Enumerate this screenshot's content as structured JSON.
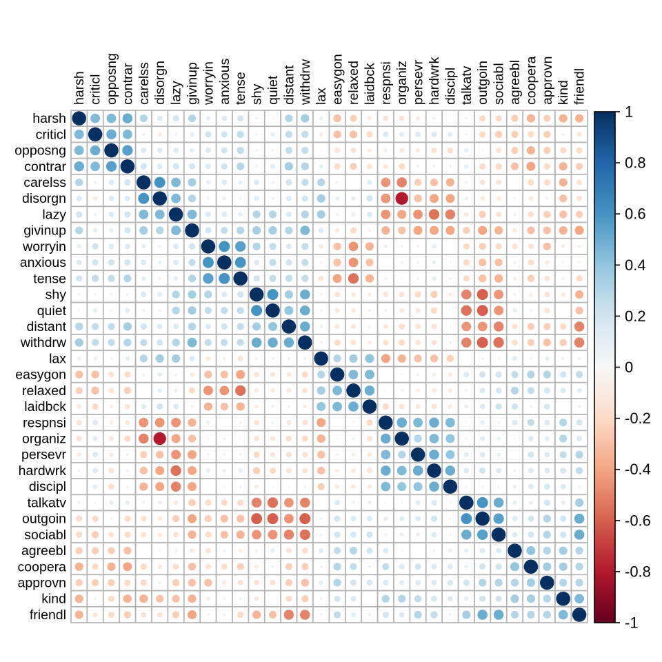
{
  "chart_data": {
    "type": "heatmap",
    "subtype": "correlation-circle-matrix",
    "title": "",
    "grid": true,
    "legend_position": "right",
    "variables": [
      "harsh",
      "criticl",
      "opposng",
      "contrar",
      "carelss",
      "disorgn",
      "lazy",
      "givinup",
      "worryin",
      "anxious",
      "tense",
      "shy",
      "quiet",
      "distant",
      "withdrw",
      "lax",
      "easygon",
      "relaxed",
      "laidbck",
      "respnsi",
      "organiz",
      "persevr",
      "hardwrk",
      "discipl",
      "talkatv",
      "outgoin",
      "sociabl",
      "agreebl",
      "coopera",
      "approvn",
      "kind",
      "friendl"
    ],
    "value_range": [
      -1,
      1
    ],
    "matrix": [
      [
        1.0,
        0.45,
        0.45,
        0.5,
        0.3,
        0.15,
        0.2,
        0.3,
        0.1,
        0.15,
        0.2,
        0.05,
        0.02,
        0.3,
        0.35,
        0.08,
        -0.3,
        -0.25,
        -0.1,
        -0.15,
        -0.15,
        -0.1,
        0.05,
        0.0,
        0.05,
        -0.2,
        -0.2,
        -0.25,
        -0.35,
        -0.25,
        -0.35,
        -0.35
      ],
      [
        0.45,
        1.0,
        0.5,
        0.45,
        0.05,
        -0.1,
        0.05,
        0.1,
        0.2,
        0.2,
        0.25,
        0.03,
        0.1,
        0.25,
        0.25,
        -0.08,
        -0.3,
        -0.3,
        -0.2,
        0.15,
        0.12,
        0.15,
        0.15,
        0.12,
        -0.03,
        -0.2,
        -0.25,
        -0.25,
        -0.2,
        -0.25,
        -0.05,
        -0.12
      ],
      [
        0.45,
        0.5,
        1.0,
        0.55,
        0.15,
        0.15,
        0.15,
        0.1,
        0.15,
        0.2,
        0.25,
        -0.05,
        0.05,
        0.25,
        0.25,
        0.02,
        -0.15,
        -0.15,
        -0.08,
        -0.08,
        -0.12,
        -0.1,
        -0.15,
        -0.18,
        0.1,
        0.02,
        -0.15,
        -0.25,
        -0.35,
        -0.25,
        -0.2,
        -0.2
      ],
      [
        0.5,
        0.45,
        0.55,
        1.0,
        0.2,
        0.15,
        0.2,
        0.2,
        0.15,
        0.2,
        0.3,
        0.05,
        0.12,
        0.35,
        0.3,
        0.1,
        -0.2,
        -0.25,
        -0.15,
        -0.12,
        -0.2,
        -0.05,
        -0.05,
        -0.05,
        0.1,
        -0.2,
        -0.2,
        -0.3,
        -0.4,
        -0.2,
        -0.35,
        -0.25
      ],
      [
        0.3,
        0.05,
        0.15,
        0.2,
        1.0,
        0.6,
        0.45,
        0.35,
        0.1,
        0.15,
        0.1,
        0.15,
        0.05,
        0.2,
        0.25,
        0.3,
        -0.05,
        0.0,
        0.12,
        -0.45,
        -0.5,
        -0.25,
        -0.3,
        -0.35,
        0.05,
        -0.15,
        -0.15,
        0.0,
        -0.2,
        -0.2,
        -0.35,
        -0.15
      ],
      [
        0.15,
        -0.1,
        0.15,
        0.15,
        0.6,
        1.0,
        0.45,
        0.3,
        0.05,
        0.08,
        0.05,
        0.12,
        0.05,
        0.15,
        0.2,
        0.35,
        0.1,
        0.1,
        0.2,
        -0.45,
        -0.8,
        -0.3,
        -0.4,
        -0.4,
        0.08,
        -0.1,
        -0.1,
        -0.02,
        -0.1,
        -0.05,
        -0.3,
        -0.15
      ],
      [
        0.2,
        0.05,
        0.15,
        0.2,
        0.45,
        0.45,
        1.0,
        0.45,
        0.15,
        0.15,
        0.1,
        0.3,
        0.3,
        0.15,
        0.3,
        0.35,
        0.05,
        0.08,
        0.15,
        -0.45,
        -0.4,
        -0.45,
        -0.55,
        -0.5,
        -0.1,
        -0.25,
        -0.15,
        -0.05,
        -0.18,
        -0.25,
        -0.3,
        -0.25
      ],
      [
        0.3,
        0.1,
        0.1,
        0.2,
        0.35,
        0.3,
        0.45,
        1.0,
        0.2,
        0.25,
        0.3,
        0.35,
        0.35,
        0.3,
        0.45,
        0.15,
        -0.1,
        -0.2,
        -0.05,
        -0.35,
        -0.3,
        -0.4,
        -0.4,
        -0.4,
        -0.25,
        -0.4,
        -0.35,
        -0.1,
        -0.3,
        -0.3,
        -0.35,
        -0.4
      ],
      [
        0.1,
        0.2,
        0.15,
        0.15,
        0.1,
        0.05,
        0.15,
        0.2,
        1.0,
        0.6,
        0.55,
        0.3,
        0.25,
        0.15,
        0.25,
        -0.1,
        -0.3,
        -0.45,
        -0.35,
        0.08,
        0.03,
        0.05,
        0.1,
        0.0,
        -0.2,
        -0.25,
        -0.2,
        -0.15,
        -0.15,
        -0.3,
        -0.08,
        -0.05
      ],
      [
        0.15,
        0.2,
        0.2,
        0.2,
        0.15,
        0.08,
        0.15,
        0.25,
        0.6,
        1.0,
        0.6,
        0.15,
        0.25,
        0.2,
        0.25,
        -0.05,
        -0.3,
        -0.45,
        -0.3,
        0.0,
        -0.05,
        0.05,
        0.08,
        0.02,
        -0.2,
        -0.3,
        -0.3,
        0.05,
        -0.18,
        -0.1,
        -0.03,
        -0.03
      ],
      [
        0.2,
        0.25,
        0.25,
        0.3,
        0.1,
        0.05,
        0.1,
        0.3,
        0.55,
        0.6,
        1.0,
        0.2,
        0.25,
        0.25,
        0.25,
        -0.15,
        -0.4,
        -0.55,
        -0.35,
        0.05,
        0.02,
        0.05,
        0.1,
        0.05,
        -0.2,
        -0.3,
        -0.35,
        -0.08,
        -0.25,
        -0.15,
        -0.05,
        -0.2
      ],
      [
        0.05,
        0.03,
        -0.05,
        0.05,
        0.15,
        0.12,
        0.3,
        0.35,
        0.3,
        0.15,
        0.2,
        1.0,
        0.6,
        0.35,
        0.5,
        0.05,
        -0.15,
        -0.1,
        -0.08,
        -0.15,
        -0.15,
        -0.2,
        -0.25,
        -0.08,
        -0.5,
        -0.6,
        -0.45,
        0.05,
        -0.08,
        -0.15,
        -0.1,
        -0.35
      ],
      [
        0.02,
        0.1,
        0.05,
        0.12,
        0.05,
        0.05,
        0.3,
        0.35,
        0.25,
        0.25,
        0.25,
        0.6,
        1.0,
        0.4,
        0.5,
        0.05,
        -0.12,
        -0.1,
        -0.05,
        -0.05,
        -0.12,
        -0.12,
        -0.2,
        -0.02,
        -0.55,
        -0.6,
        -0.45,
        0.1,
        0.05,
        -0.15,
        0.0,
        -0.3
      ],
      [
        0.3,
        0.25,
        0.25,
        0.35,
        0.2,
        0.15,
        0.15,
        0.3,
        0.15,
        0.2,
        0.25,
        0.35,
        0.4,
        1.0,
        0.5,
        0.05,
        -0.12,
        -0.12,
        -0.05,
        -0.12,
        -0.18,
        -0.15,
        -0.15,
        -0.02,
        -0.45,
        -0.45,
        -0.5,
        -0.15,
        -0.25,
        -0.25,
        -0.2,
        -0.5
      ],
      [
        0.35,
        0.25,
        0.25,
        0.3,
        0.25,
        0.2,
        0.3,
        0.45,
        0.25,
        0.25,
        0.25,
        0.5,
        0.5,
        0.5,
        1.0,
        0.05,
        -0.2,
        -0.15,
        -0.08,
        -0.15,
        -0.2,
        -0.15,
        -0.15,
        -0.05,
        -0.5,
        -0.6,
        -0.55,
        -0.18,
        -0.25,
        -0.3,
        -0.25,
        -0.5
      ],
      [
        0.08,
        -0.08,
        0.02,
        0.1,
        0.3,
        0.35,
        0.35,
        0.15,
        -0.1,
        -0.05,
        -0.15,
        0.05,
        0.05,
        0.05,
        0.05,
        1.0,
        0.3,
        0.35,
        0.4,
        -0.4,
        -0.35,
        -0.3,
        -0.3,
        -0.25,
        0.0,
        0.03,
        0.03,
        0.12,
        0.05,
        0.1,
        0.05,
        0.05
      ],
      [
        -0.3,
        -0.3,
        -0.15,
        -0.2,
        -0.05,
        0.1,
        0.05,
        -0.1,
        -0.3,
        -0.3,
        -0.4,
        -0.15,
        -0.12,
        -0.12,
        -0.2,
        0.3,
        1.0,
        0.45,
        0.45,
        0.0,
        0.02,
        -0.05,
        -0.08,
        -0.1,
        0.15,
        0.2,
        0.2,
        0.25,
        0.3,
        0.3,
        0.2,
        0.25
      ],
      [
        -0.25,
        -0.3,
        -0.15,
        -0.25,
        0.0,
        0.1,
        0.08,
        -0.2,
        -0.45,
        -0.45,
        -0.55,
        -0.1,
        -0.1,
        -0.12,
        -0.15,
        0.35,
        0.45,
        1.0,
        0.5,
        0.02,
        -0.05,
        -0.08,
        -0.1,
        -0.1,
        0.05,
        0.15,
        0.18,
        0.3,
        0.25,
        0.2,
        0.15,
        0.12
      ],
      [
        -0.1,
        -0.2,
        -0.08,
        -0.15,
        0.12,
        0.2,
        0.15,
        -0.05,
        -0.35,
        -0.3,
        -0.35,
        -0.08,
        -0.05,
        -0.05,
        -0.08,
        0.4,
        0.45,
        0.5,
        1.0,
        -0.2,
        -0.15,
        -0.12,
        -0.15,
        -0.1,
        0.08,
        0.15,
        0.2,
        0.2,
        0.05,
        0.18,
        0.0,
        0.05
      ],
      [
        -0.15,
        0.15,
        -0.08,
        -0.12,
        -0.45,
        -0.45,
        -0.45,
        -0.35,
        0.08,
        0.0,
        0.05,
        -0.15,
        -0.05,
        -0.12,
        -0.15,
        -0.4,
        0.0,
        0.02,
        -0.2,
        1.0,
        0.5,
        0.45,
        0.5,
        0.45,
        0.02,
        0.1,
        0.05,
        0.15,
        0.25,
        0.15,
        0.3,
        0.2
      ],
      [
        -0.15,
        0.12,
        -0.12,
        -0.2,
        -0.5,
        -0.8,
        -0.4,
        -0.3,
        0.03,
        -0.05,
        0.02,
        -0.15,
        -0.12,
        -0.18,
        -0.2,
        -0.35,
        0.02,
        -0.05,
        -0.15,
        0.5,
        1.0,
        0.3,
        0.45,
        0.4,
        0.03,
        0.12,
        0.08,
        0.02,
        0.15,
        0.12,
        0.3,
        0.15
      ],
      [
        -0.1,
        0.15,
        -0.1,
        -0.05,
        -0.25,
        -0.3,
        -0.45,
        -0.4,
        0.05,
        0.05,
        0.05,
        -0.2,
        -0.12,
        -0.15,
        -0.15,
        -0.3,
        -0.05,
        -0.08,
        -0.12,
        0.45,
        0.3,
        1.0,
        0.5,
        0.4,
        0.12,
        0.15,
        0.08,
        0.0,
        0.2,
        0.15,
        0.25,
        0.3
      ],
      [
        0.05,
        0.15,
        -0.15,
        -0.05,
        -0.3,
        -0.4,
        -0.55,
        -0.4,
        0.1,
        0.08,
        0.1,
        -0.25,
        -0.2,
        -0.15,
        -0.15,
        -0.3,
        -0.08,
        -0.1,
        -0.15,
        0.5,
        0.45,
        0.5,
        1.0,
        0.5,
        0.15,
        0.2,
        0.15,
        0.05,
        0.15,
        0.15,
        0.18,
        0.25
      ],
      [
        0.0,
        0.12,
        -0.18,
        -0.05,
        -0.35,
        -0.4,
        -0.5,
        -0.4,
        0.0,
        0.02,
        0.05,
        -0.08,
        -0.02,
        -0.02,
        -0.05,
        -0.25,
        -0.1,
        -0.1,
        -0.1,
        0.45,
        0.4,
        0.4,
        0.5,
        1.0,
        0.03,
        0.03,
        -0.03,
        0.08,
        0.15,
        0.18,
        0.15,
        0.05
      ],
      [
        0.05,
        -0.03,
        0.1,
        0.1,
        0.05,
        0.08,
        -0.1,
        -0.25,
        -0.2,
        -0.2,
        -0.2,
        -0.5,
        -0.55,
        -0.45,
        -0.5,
        0.0,
        0.15,
        0.05,
        0.08,
        0.02,
        0.03,
        0.12,
        0.15,
        0.03,
        1.0,
        0.6,
        0.5,
        0.1,
        0.08,
        0.2,
        0.1,
        0.35
      ],
      [
        -0.2,
        -0.2,
        0.02,
        -0.2,
        -0.15,
        -0.1,
        -0.25,
        -0.4,
        -0.25,
        -0.3,
        -0.3,
        -0.6,
        -0.6,
        -0.45,
        -0.6,
        0.03,
        0.2,
        0.15,
        0.15,
        0.1,
        0.12,
        0.15,
        0.2,
        0.03,
        0.6,
        1.0,
        0.55,
        0.15,
        0.2,
        0.3,
        0.2,
        0.5
      ],
      [
        -0.2,
        -0.25,
        -0.15,
        -0.2,
        -0.15,
        -0.1,
        -0.15,
        -0.35,
        -0.2,
        -0.3,
        -0.35,
        -0.45,
        -0.45,
        -0.5,
        -0.55,
        0.03,
        0.2,
        0.18,
        0.2,
        0.05,
        0.08,
        0.08,
        0.15,
        -0.03,
        0.5,
        0.55,
        1.0,
        0.15,
        0.2,
        0.3,
        0.2,
        0.5
      ],
      [
        -0.25,
        -0.25,
        -0.25,
        -0.3,
        0.0,
        -0.02,
        -0.05,
        -0.1,
        -0.15,
        0.05,
        -0.08,
        0.05,
        0.1,
        -0.15,
        -0.18,
        0.12,
        0.25,
        0.3,
        0.2,
        0.15,
        0.02,
        0.0,
        0.05,
        0.08,
        0.1,
        0.15,
        0.15,
        1.0,
        0.4,
        0.3,
        0.35,
        0.3
      ],
      [
        -0.35,
        -0.2,
        -0.35,
        -0.4,
        -0.2,
        -0.1,
        -0.18,
        -0.3,
        -0.15,
        -0.18,
        -0.25,
        -0.08,
        0.05,
        -0.25,
        -0.25,
        0.05,
        0.3,
        0.25,
        0.05,
        0.25,
        0.15,
        0.2,
        0.15,
        0.15,
        0.08,
        0.2,
        0.2,
        0.4,
        1.0,
        0.35,
        0.35,
        0.3
      ],
      [
        -0.25,
        -0.25,
        -0.25,
        -0.2,
        -0.2,
        -0.05,
        -0.25,
        -0.3,
        -0.3,
        -0.1,
        -0.15,
        -0.15,
        -0.15,
        -0.25,
        -0.3,
        0.1,
        0.3,
        0.2,
        0.18,
        0.15,
        0.12,
        0.15,
        0.15,
        0.18,
        0.2,
        0.3,
        0.3,
        0.3,
        0.35,
        1.0,
        0.3,
        0.3
      ],
      [
        -0.35,
        -0.05,
        -0.2,
        -0.35,
        -0.35,
        -0.3,
        -0.3,
        -0.35,
        -0.08,
        -0.03,
        -0.05,
        -0.1,
        0.0,
        -0.2,
        -0.25,
        0.05,
        0.2,
        0.15,
        0.0,
        0.3,
        0.3,
        0.25,
        0.18,
        0.15,
        0.1,
        0.2,
        0.2,
        0.35,
        0.35,
        0.3,
        1.0,
        0.45
      ],
      [
        -0.35,
        -0.12,
        -0.2,
        -0.25,
        -0.15,
        -0.15,
        -0.25,
        -0.4,
        -0.05,
        -0.03,
        -0.2,
        -0.35,
        -0.3,
        -0.5,
        -0.5,
        0.05,
        0.25,
        0.12,
        0.05,
        0.2,
        0.15,
        0.3,
        0.25,
        0.05,
        0.35,
        0.5,
        0.5,
        0.3,
        0.3,
        0.3,
        0.45,
        1.0
      ]
    ],
    "colorbar": {
      "ticks": [
        1,
        0.8,
        0.6,
        0.4,
        0.2,
        0,
        -0.2,
        -0.4,
        -0.6,
        -0.8,
        -1
      ],
      "tick_labels": [
        "1",
        "0.8",
        "0.6",
        "0.4",
        "0.2",
        "0",
        "-0.2",
        "-0.4",
        "-0.6",
        "-0.8",
        "-1"
      ],
      "range": [
        1,
        -1
      ]
    },
    "colormap_stops": [
      {
        "value": -1.0,
        "color": "#67001F"
      },
      {
        "value": -0.8,
        "color": "#B2182B"
      },
      {
        "value": -0.6,
        "color": "#D6604D"
      },
      {
        "value": -0.4,
        "color": "#F4A582"
      },
      {
        "value": -0.2,
        "color": "#FDDBC7"
      },
      {
        "value": 0.0,
        "color": "#F7F7F7"
      },
      {
        "value": 0.2,
        "color": "#D1E5F0"
      },
      {
        "value": 0.4,
        "color": "#92C5DE"
      },
      {
        "value": 0.6,
        "color": "#4393C3"
      },
      {
        "value": 0.8,
        "color": "#2166AC"
      },
      {
        "value": 1.0,
        "color": "#053061"
      }
    ]
  },
  "colors": {
    "background": "#ffffff",
    "grid_line": "#b3b3b3",
    "cell_fill": "#ffffff",
    "label_color": "#000000",
    "colorbar_border": "#000000"
  }
}
